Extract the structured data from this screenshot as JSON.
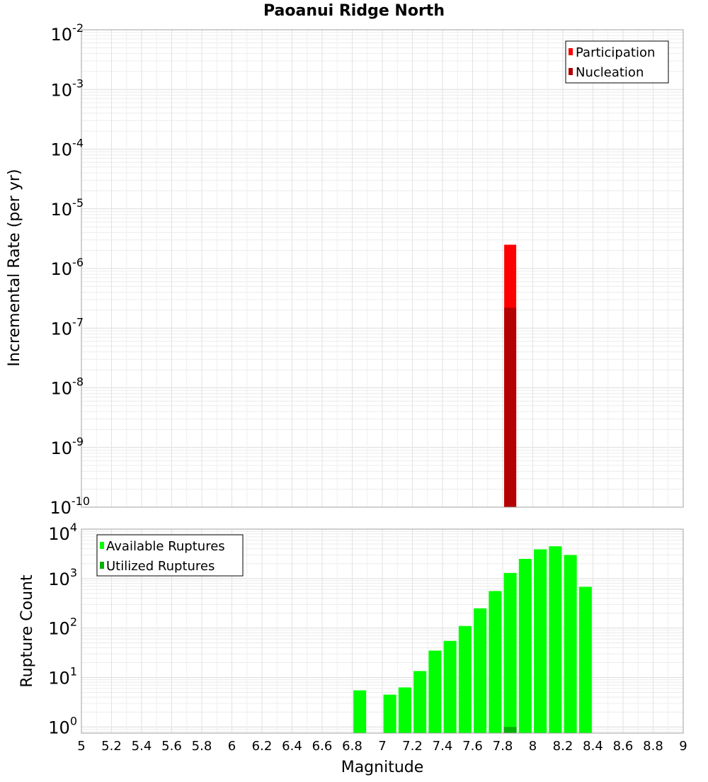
{
  "chart_data": [
    {
      "type": "bar",
      "id": "rate",
      "title": "Paoanui Ridge North",
      "xlabel": "",
      "ylabel": "Incremental Rate (per yr)",
      "xlim": [
        5,
        9
      ],
      "ylim": [
        1e-10,
        0.01
      ],
      "yscale": "log",
      "y_tick_exponents": [
        -2,
        -3,
        -4,
        -5,
        -6,
        -7,
        -8,
        -9,
        -10
      ],
      "legend_position": "top-right",
      "series": [
        {
          "name": "Participation",
          "color": "#ff0000",
          "x": [
            7.85
          ],
          "values": [
            2.5e-06
          ]
        },
        {
          "name": "Nucleation",
          "color": "#b30000",
          "x": [
            7.85
          ],
          "values": [
            2.2e-07
          ]
        }
      ]
    },
    {
      "type": "bar",
      "id": "count",
      "xlabel": "Magnitude",
      "ylabel": "Rupture Count",
      "xlim": [
        5,
        9
      ],
      "ylim": [
        0.75,
        10000
      ],
      "yscale": "log",
      "y_tick_exponents": [
        0,
        1,
        2,
        3,
        4
      ],
      "x_ticks": [
        "5",
        "5.2",
        "5.4",
        "5.6",
        "5.8",
        "6",
        "6.2",
        "6.4",
        "6.6",
        "6.8",
        "7",
        "7.2",
        "7.4",
        "7.6",
        "7.8",
        "8",
        "8.2",
        "8.4",
        "8.6",
        "8.8",
        "9"
      ],
      "legend_position": "top-left",
      "series": [
        {
          "name": "Available Ruptures",
          "color": "#00ff00",
          "x": [
            6.85,
            7.05,
            7.15,
            7.25,
            7.35,
            7.45,
            7.55,
            7.65,
            7.75,
            7.85,
            7.95,
            8.05,
            8.15,
            8.25,
            8.35
          ],
          "values": [
            5.5,
            4.5,
            6.3,
            13.5,
            35,
            55,
            110,
            250,
            560,
            1300,
            2500,
            3900,
            4500,
            3000,
            680
          ]
        },
        {
          "name": "Utilized Ruptures",
          "color": "#00b300",
          "x": [
            7.85
          ],
          "values": [
            1
          ]
        }
      ]
    }
  ]
}
